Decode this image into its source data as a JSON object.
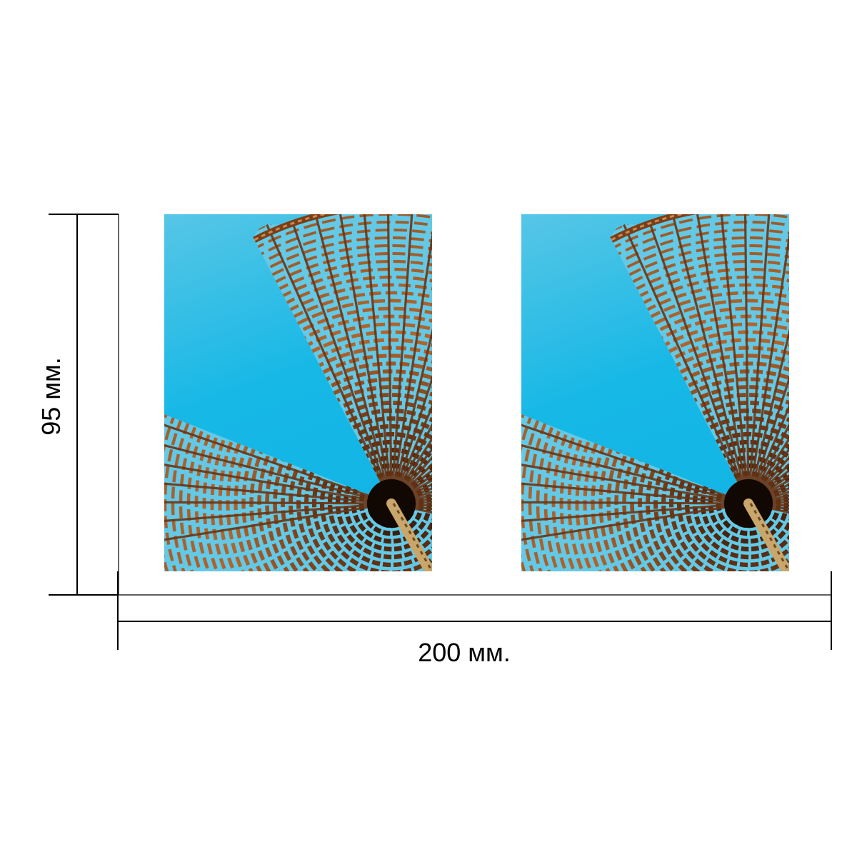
{
  "dimensions": {
    "width_label": "200 мм.",
    "height_label": "95 мм."
  },
  "photos": [
    {
      "name": "wicker-parasol-photo-left"
    },
    {
      "name": "wicker-parasol-photo-right"
    }
  ],
  "colors": {
    "sky": "#17b8e6",
    "wicker": "#b0652e",
    "wicker_dark": "#5a2c12",
    "pole": "#c9a66b",
    "line": "#000000"
  }
}
